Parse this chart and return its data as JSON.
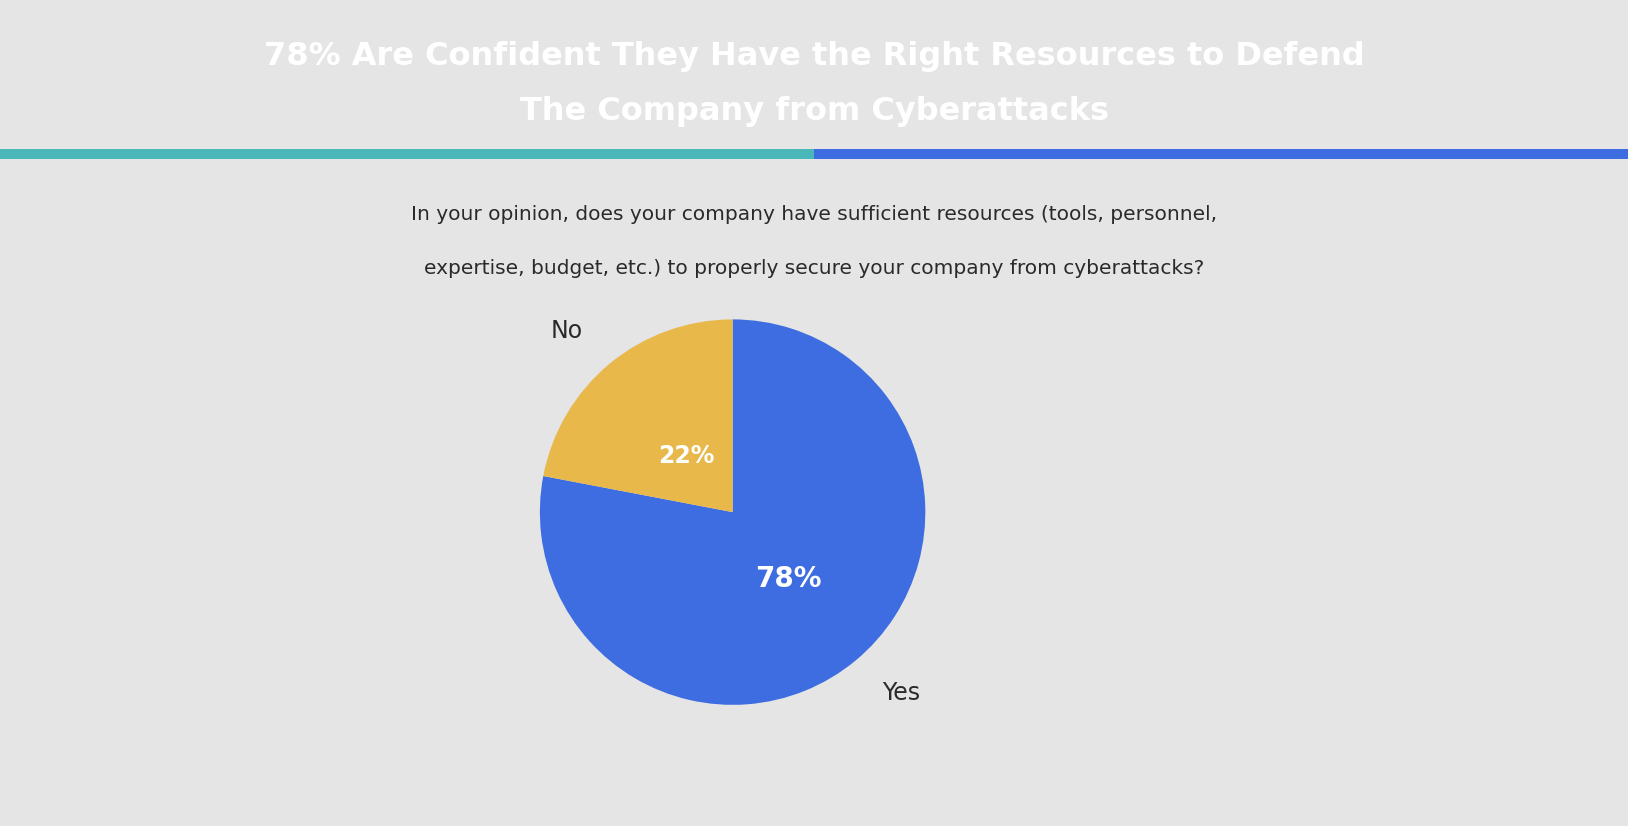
{
  "title_line1": "78% Are Confident They Have the Right Resources to Defend",
  "title_line2": "The Company from Cyberattacks",
  "title_bg_color": "#0d1b2e",
  "title_text_color": "#ffffff",
  "subtitle_line1": "In your opinion, does your company have sufficient resources (tools, personnel,",
  "subtitle_line2": "expertise, budget, etc.) to properly secure your company from cyberattacks?",
  "subtitle_color": "#2a2a2a",
  "background_color": "#e5e5e5",
  "slices": [
    78,
    22
  ],
  "slice_labels": [
    "Yes",
    "No"
  ],
  "slice_colors": [
    "#3d6de0",
    "#e8b84b"
  ],
  "slice_text_labels": [
    "78%",
    "22%"
  ],
  "slice_text_color": "#ffffff",
  "label_text_color": "#2a2a2a",
  "accent_color_left": "#4ab8b8",
  "accent_color_right": "#3d6de0"
}
